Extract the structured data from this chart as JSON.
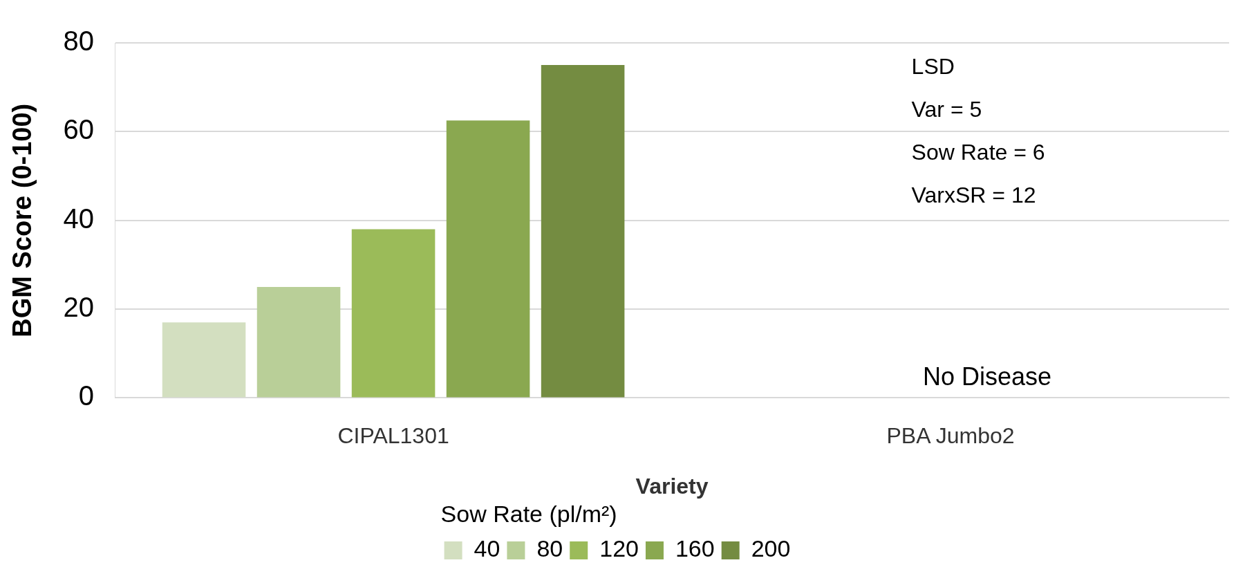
{
  "chart_data": {
    "type": "bar",
    "xlabel": "Variety",
    "ylabel": "BGM Score (0-100)",
    "legend_title": "Sow Rate (pl/m²)",
    "categories": [
      "CIPAL1301",
      "PBA Jumbo2"
    ],
    "series": [
      {
        "name": "40",
        "color": "#d3dfc0",
        "values": [
          17,
          null
        ]
      },
      {
        "name": "80",
        "color": "#b9cf98",
        "values": [
          25,
          null
        ]
      },
      {
        "name": "120",
        "color": "#9bbb59",
        "values": [
          38,
          null
        ]
      },
      {
        "name": "160",
        "color": "#8aa850",
        "values": [
          62.5,
          null
        ]
      },
      {
        "name": "200",
        "color": "#748c41",
        "values": [
          75,
          null
        ]
      }
    ],
    "ylim": [
      0,
      80
    ],
    "yticks": [
      0,
      20,
      40,
      60,
      80
    ],
    "grid": "y",
    "legend": "bottom",
    "annotations": [
      "LSD",
      "Var = 5",
      "Sow Rate = 6",
      "VarxSR = 12",
      "No Disease"
    ]
  }
}
